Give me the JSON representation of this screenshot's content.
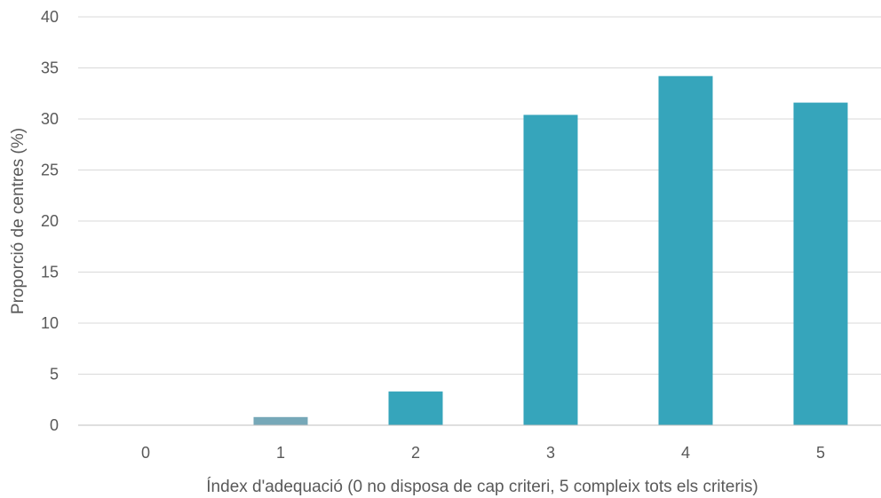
{
  "chart_data": {
    "type": "bar",
    "categories": [
      "0",
      "1",
      "2",
      "3",
      "4",
      "5"
    ],
    "values": [
      0,
      0.8,
      3.3,
      30.4,
      34.2,
      31.6
    ],
    "bar_colors": [
      "#36a5bb",
      "#76a8b8",
      "#36a5bb",
      "#36a5bb",
      "#36a5bb",
      "#36a5bb"
    ],
    "title": "",
    "xlabel": "Índex d'adequació (0 no disposa de cap criteri, 5 compleix tots els criteris)",
    "ylabel": "Proporció de centres (%)",
    "ylim": [
      0,
      40
    ],
    "yticks": [
      "0",
      "5",
      "10",
      "15",
      "20",
      "25",
      "30",
      "35",
      "40"
    ],
    "grid": true,
    "legend": "none"
  }
}
